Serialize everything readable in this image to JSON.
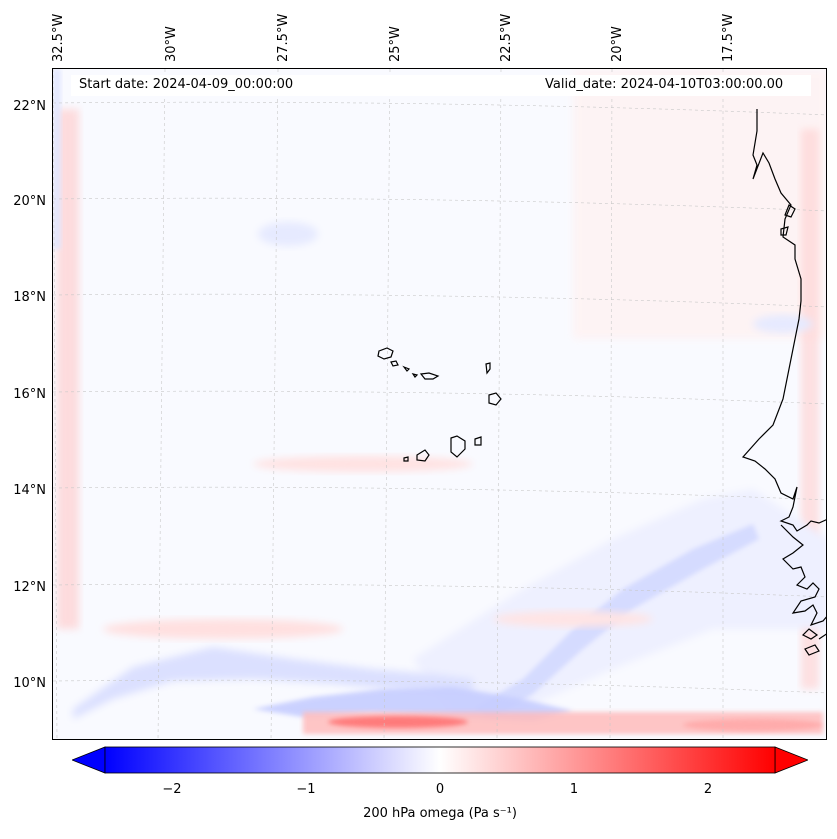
{
  "map": {
    "start_date": "Start date: 2024-04-09_00:00:00",
    "valid_date": "Valid_date: 2024-04-10T03:00:00.00",
    "lon_labels": [
      "32.5°W",
      "30°W",
      "27.5°W",
      "25°W",
      "22.5°W",
      "20°W",
      "17.5°W"
    ],
    "lat_labels": [
      "22°N",
      "20°N",
      "18°N",
      "16°N",
      "14°N",
      "12°N",
      "10°N"
    ],
    "gridlines": true,
    "colors": {
      "negative": "#0000ff",
      "neutral": "#ffffff",
      "positive": "#ff0000",
      "coastline": "#000000"
    }
  },
  "colorbar": {
    "label": "200 hPa omega (Pa s⁻¹)",
    "ticks": [
      "−2",
      "−1",
      "0",
      "1",
      "2"
    ],
    "range": [
      -2.6,
      2.6
    ],
    "extend": "both"
  }
}
